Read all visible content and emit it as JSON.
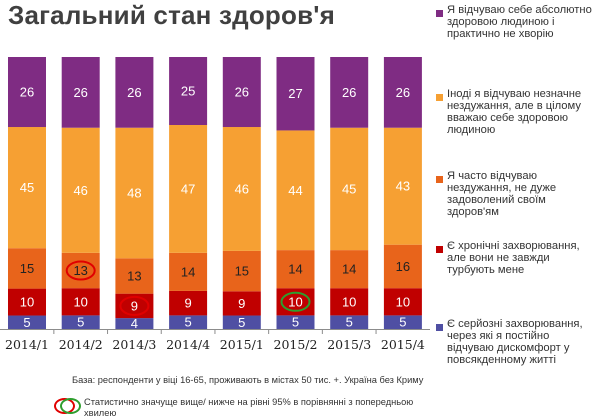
{
  "title": "Загальний стан здоров'я",
  "colors": {
    "series": [
      "#4f4fa3",
      "#c00000",
      "#e8641b",
      "#f6a033",
      "#7f2c83"
    ],
    "sig_higher": "#e00000",
    "sig_lower": "#2e9e2e"
  },
  "legend": [
    "Я відчуваю себе абсолютно здоровою людиною і практично не хворію",
    "Іноді я відчуваю незначне нездужання, але в цілому вважаю себе здоровою людиною",
    "Я часто відчуваю нездужання, не дуже задоволений своїм здоров'ям",
    "Є хронічні захворювання, але вони не завжди турбують мене",
    "Є серйозні захворювання, через які я постійно відчуваю дискомфорт у повсякденному житті"
  ],
  "notes": {
    "base": "База: респонденти у віці 16-65, проживають в містах 50 тис. +. Україна без Криму",
    "significance": "Статистично значуще вище/ нижче на рівні 95% в порівнянні з попередньою хвилею"
  },
  "chart_data": {
    "type": "bar",
    "stacked": true,
    "percent": true,
    "categories": [
      "2014/1",
      "2014/2",
      "2014/3",
      "2014/4",
      "2015/1",
      "2015/2",
      "2015/3",
      "2015/4"
    ],
    "series": [
      {
        "name": "Є серйозні захворювання, через які я постійно відчуваю дискомфорт у повсякденному житті",
        "values": [
          5,
          5,
          4,
          5,
          5,
          5,
          5,
          5
        ]
      },
      {
        "name": "Є хронічні захворювання, але вони не завжди турбують мене",
        "values": [
          10,
          10,
          9,
          9,
          9,
          10,
          10,
          10
        ]
      },
      {
        "name": "Я часто відчуваю нездужання, не дуже задоволений своїм здоров'ям",
        "values": [
          15,
          13,
          13,
          14,
          15,
          14,
          14,
          16
        ]
      },
      {
        "name": "Іноді я відчуваю незначне нездужання, але в цілому вважаю себе здоровою людиною",
        "values": [
          45,
          46,
          48,
          47,
          46,
          44,
          45,
          43
        ]
      },
      {
        "name": "Я відчуваю себе абсолютно здоровою людиною і практично не хворію",
        "values": [
          26,
          26,
          26,
          25,
          26,
          27,
          26,
          26
        ]
      }
    ],
    "significance": [
      {
        "category": "2014/2",
        "series_index": 2,
        "direction": "higher"
      },
      {
        "category": "2014/3",
        "series_index": 1,
        "direction": "higher"
      },
      {
        "category": "2015/2",
        "series_index": 1,
        "direction": "lower"
      }
    ],
    "legend_position": "right"
  }
}
